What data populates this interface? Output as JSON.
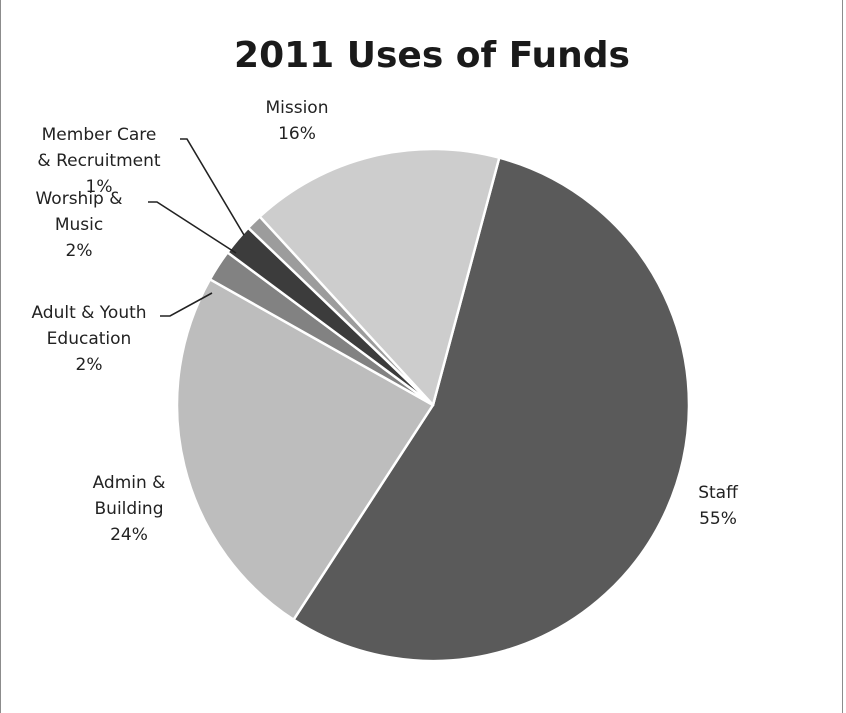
{
  "chart_data": {
    "type": "pie",
    "title": "2011 Uses of Funds",
    "start_angle_deg": 15,
    "direction": "clockwise",
    "slices": [
      {
        "label_lines": [
          "Staff",
          "55%"
        ],
        "value": 55,
        "color": "#5a5a5a"
      },
      {
        "label_lines": [
          "Admin &",
          "Building",
          "24%"
        ],
        "value": 24,
        "color": "#bdbdbd"
      },
      {
        "label_lines": [
          "Adult & Youth",
          "Education",
          "2%"
        ],
        "value": 2,
        "color": "#828282"
      },
      {
        "label_lines": [
          "Worship &",
          "Music",
          "2%"
        ],
        "value": 2,
        "color": "#3c3c3c"
      },
      {
        "label_lines": [
          "Member Care",
          "& Recruitment",
          "1%"
        ],
        "value": 1,
        "color": "#9c9c9c"
      },
      {
        "label_lines": [
          "Mission",
          "16%"
        ],
        "value": 16,
        "color": "#cdcdcd"
      }
    ]
  }
}
